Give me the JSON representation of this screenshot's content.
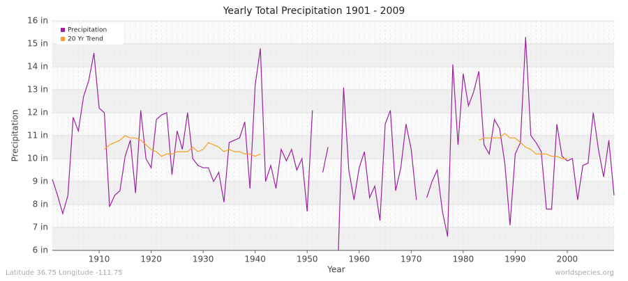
{
  "chart_data": {
    "type": "line",
    "title": "Yearly Total Precipitation 1901 - 2009",
    "x_label": "Year",
    "y_label": "Precipitation",
    "footer_left": "Latitude 36.75 Longitude -111.75",
    "footer_right": "worldspecies.org",
    "x": [
      1901,
      1902,
      1903,
      1904,
      1905,
      1906,
      1907,
      1908,
      1909,
      1910,
      1911,
      1912,
      1913,
      1914,
      1915,
      1916,
      1917,
      1918,
      1919,
      1920,
      1921,
      1922,
      1923,
      1924,
      1925,
      1926,
      1927,
      1928,
      1929,
      1930,
      1931,
      1932,
      1933,
      1934,
      1935,
      1936,
      1937,
      1938,
      1939,
      1940,
      1941,
      1942,
      1943,
      1944,
      1945,
      1946,
      1947,
      1948,
      1949,
      1950,
      1951,
      1952,
      1953,
      1954,
      1955,
      1956,
      1957,
      1958,
      1959,
      1960,
      1961,
      1962,
      1963,
      1964,
      1965,
      1966,
      1967,
      1968,
      1969,
      1970,
      1971,
      1972,
      1973,
      1974,
      1975,
      1976,
      1977,
      1978,
      1979,
      1980,
      1981,
      1982,
      1983,
      1984,
      1985,
      1986,
      1987,
      1988,
      1989,
      1990,
      1991,
      1992,
      1993,
      1994,
      1995,
      1996,
      1997,
      1998,
      1999,
      2000,
      2001,
      2002,
      2003,
      2004,
      2005,
      2006,
      2007,
      2008,
      2009
    ],
    "series": [
      {
        "name": "Precipitation",
        "color": "#9b1f9e",
        "values": [
          9.1,
          8.4,
          7.6,
          8.4,
          11.8,
          11.2,
          12.7,
          13.4,
          14.6,
          12.2,
          12.0,
          7.9,
          8.4,
          8.6,
          10.1,
          10.8,
          8.5,
          12.1,
          10.0,
          9.6,
          11.7,
          11.9,
          12.0,
          9.3,
          11.2,
          10.4,
          12.0,
          10.0,
          9.7,
          9.6,
          9.6,
          9.0,
          9.4,
          8.1,
          10.7,
          10.8,
          10.9,
          11.6,
          8.7,
          13.2,
          14.8,
          9.0,
          9.7,
          8.7,
          10.4,
          9.9,
          10.4,
          9.5,
          10.0,
          7.7,
          12.1,
          null,
          9.4,
          10.5,
          null,
          6.0,
          13.1,
          9.5,
          8.2,
          9.6,
          10.3,
          8.3,
          8.8,
          7.3,
          11.5,
          12.1,
          8.6,
          9.6,
          11.5,
          10.4,
          8.2,
          null,
          8.3,
          9.0,
          9.5,
          7.7,
          6.6,
          14.1,
          10.6,
          13.7,
          12.3,
          12.9,
          13.8,
          10.6,
          10.2,
          11.7,
          11.3,
          9.8,
          7.1,
          10.2,
          10.7,
          15.3,
          11.0,
          10.7,
          10.3,
          7.8,
          7.8,
          11.5,
          10.1,
          9.9,
          10.0,
          8.2,
          9.7,
          9.8,
          12.0,
          10.4,
          9.2,
          10.8,
          8.4
        ]
      },
      {
        "name": "20 Yr Trend",
        "color": "#f5a020",
        "values": [
          null,
          null,
          null,
          null,
          null,
          null,
          null,
          null,
          null,
          null,
          10.4,
          10.6,
          10.7,
          10.8,
          11.0,
          10.9,
          10.9,
          10.8,
          10.6,
          10.4,
          10.3,
          10.1,
          10.2,
          10.2,
          10.3,
          10.3,
          10.3,
          10.5,
          10.3,
          10.4,
          10.7,
          10.6,
          10.5,
          10.3,
          10.4,
          10.3,
          10.3,
          10.2,
          10.2,
          10.1,
          10.2,
          null,
          null,
          null,
          null,
          null,
          null,
          null,
          null,
          null,
          null,
          null,
          null,
          null,
          null,
          null,
          null,
          null,
          null,
          null,
          null,
          null,
          null,
          null,
          null,
          null,
          null,
          null,
          null,
          null,
          null,
          null,
          null,
          null,
          null,
          null,
          null,
          null,
          null,
          null,
          null,
          null,
          10.8,
          10.9,
          10.9,
          10.9,
          10.9,
          11.1,
          10.9,
          10.9,
          10.7,
          10.5,
          10.4,
          10.2,
          10.2,
          10.2,
          10.1,
          10.1,
          10.0,
          10.0,
          null,
          null,
          null,
          null,
          null,
          null,
          null,
          null,
          null
        ]
      }
    ],
    "xlim": [
      1901,
      2009
    ],
    "xticks": [
      1910,
      1920,
      1930,
      1940,
      1950,
      1960,
      1970,
      1980,
      1990,
      2000
    ],
    "ylim": [
      6,
      16
    ],
    "yticks": [
      {
        "value": 6,
        "label": "6 in"
      },
      {
        "value": 7,
        "label": "7 in"
      },
      {
        "value": 8,
        "label": "8 in"
      },
      {
        "value": 9,
        "label": "9 in"
      },
      {
        "value": 10,
        "label": "10 in"
      },
      {
        "value": 11,
        "label": "11 in"
      },
      {
        "value": 12,
        "label": "12 in"
      },
      {
        "value": 13,
        "label": "13 in"
      },
      {
        "value": 14,
        "label": "14 in"
      },
      {
        "value": 15,
        "label": "15 in"
      },
      {
        "value": 16,
        "label": "16 in"
      }
    ],
    "grid": true,
    "legend": "top-left"
  }
}
